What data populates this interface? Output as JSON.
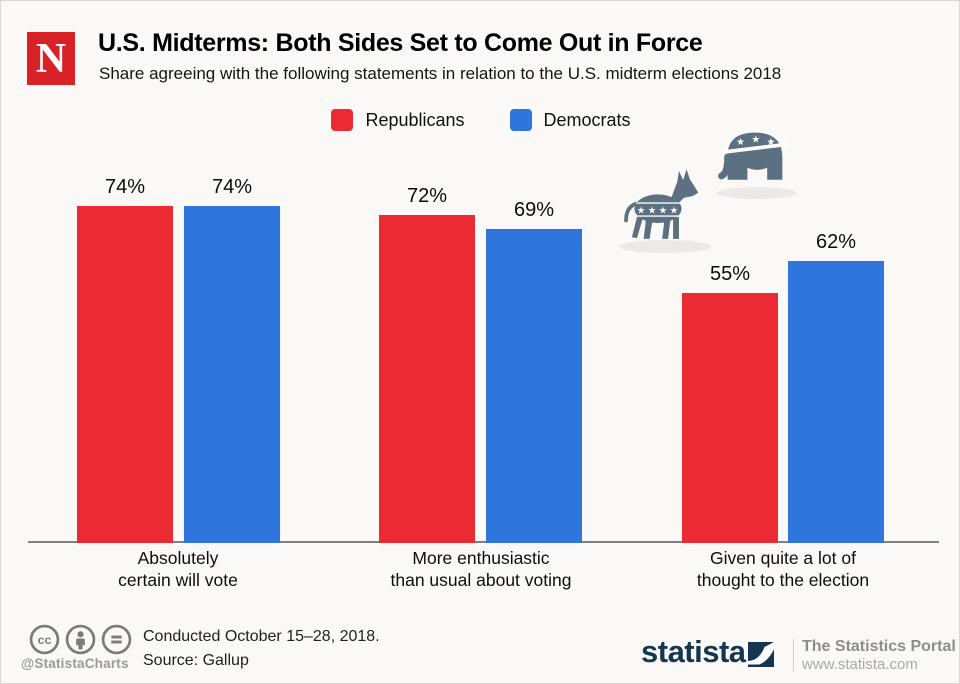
{
  "header": {
    "logo_letter": "N",
    "logo_color": "#d92128",
    "title": "U.S. Midterms: Both Sides Set to Come Out in Force",
    "subtitle": "Share agreeing with the following statements in relation to the U.S. midterm elections 2018"
  },
  "chart_data": {
    "type": "bar",
    "title": "U.S. Midterms: Both Sides Set to Come Out in Force",
    "categories": [
      "Absolutely\ncertain will vote",
      "More enthusiastic\nthan usual about voting",
      "Given quite a lot of\nthought to the election"
    ],
    "series": [
      {
        "name": "Republicans",
        "color": "#ec2a33",
        "values": [
          74,
          72,
          55
        ]
      },
      {
        "name": "Democrats",
        "color": "#2e75dd",
        "values": [
          74,
          69,
          62
        ]
      }
    ],
    "value_suffix": "%",
    "ylabel": "",
    "xlabel": "",
    "ylim": [
      0,
      100
    ],
    "grid": false,
    "legend_position": "top",
    "value_labels_shown": true
  },
  "icons": {
    "party": [
      "democratic-donkey-icon",
      "republican-elephant-icon"
    ],
    "license": [
      "cc-icon",
      "attribution-icon",
      "equals-icon"
    ],
    "brand": "statista-swoosh-icon"
  },
  "footer": {
    "handle": "@StatistaCharts",
    "note_line1": "Conducted October 15–28, 2018.",
    "note_line2": "Source: Gallup",
    "brand": "statista",
    "brand_color": "#16354e",
    "tagline": "The Statistics Portal",
    "website": "www.statista.com"
  }
}
